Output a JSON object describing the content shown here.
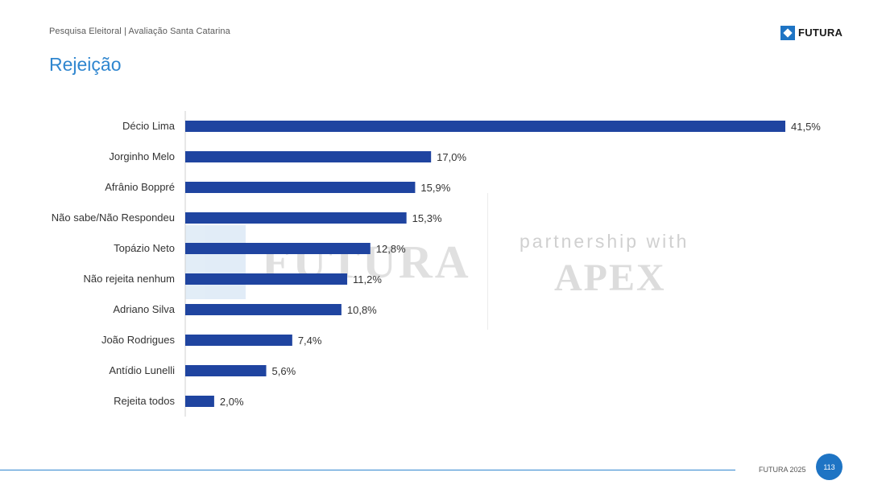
{
  "header": {
    "subtitle": "Pesquisa Eleitoral | Avaliação Santa Catarina",
    "title": "Rejeição",
    "logo_text": "FUTURA"
  },
  "watermark": {
    "brand": "FUTURA",
    "partner_text": "partnership with",
    "partner_name": "APEX"
  },
  "chart_data": {
    "type": "bar",
    "orientation": "horizontal",
    "categories": [
      "Décio Lima",
      "Jorginho Melo",
      "Afrânio Boppré",
      "Não sabe/Não Respondeu",
      "Topázio Neto",
      "Não rejeita nenhum",
      "Adriano Silva",
      "João Rodrigues",
      "Antídio Lunelli",
      "Rejeita todos"
    ],
    "values": [
      41.5,
      17.0,
      15.9,
      15.3,
      12.8,
      11.2,
      10.8,
      7.4,
      5.6,
      2.0
    ],
    "value_labels": [
      "41,5%",
      "17,0%",
      "15,9%",
      "15,3%",
      "12,8%",
      "11,2%",
      "10,8%",
      "7,4%",
      "5,6%",
      "2,0%"
    ],
    "xlim": [
      0,
      41.5
    ],
    "grid": false,
    "bar_color": "#1f44a0"
  },
  "footer": {
    "brand_year": "FUTURA 2025",
    "page_number": "113"
  },
  "colors": {
    "accent": "#2f86cf",
    "bar": "#1f44a0",
    "badge": "#1e74c4"
  }
}
